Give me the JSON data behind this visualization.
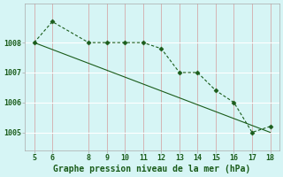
{
  "x": [
    5,
    6,
    8,
    9,
    10,
    11,
    12,
    13,
    14,
    15,
    16,
    17,
    18
  ],
  "y": [
    1008.0,
    1008.7,
    1008.0,
    1008.0,
    1008.0,
    1008.0,
    1007.8,
    1007.0,
    1007.0,
    1006.4,
    1006.0,
    1005.0,
    1005.2
  ],
  "trend_x": [
    5,
    18
  ],
  "trend_y": [
    1008.0,
    1005.0
  ],
  "line_color": "#1a5c1a",
  "marker": "D",
  "marker_size": 2.5,
  "background_color": "#d6f5f5",
  "grid_color_v": "#d4aaaa",
  "grid_color_h": "#ffffff",
  "xlabel": "Graphe pression niveau de la mer (hPa)",
  "xlim": [
    4.5,
    18.5
  ],
  "ylim": [
    1004.4,
    1009.3
  ],
  "yticks": [
    1005,
    1006,
    1007,
    1008
  ],
  "xticks": [
    5,
    6,
    8,
    9,
    10,
    11,
    12,
    13,
    14,
    15,
    16,
    17,
    18
  ],
  "xlabel_fontsize": 7.0,
  "tick_fontsize": 6.0,
  "tick_color": "#1a5c1a",
  "xlabel_color": "#1a5c1a",
  "xlabel_bold": true,
  "spine_color": "#aaaaaa"
}
